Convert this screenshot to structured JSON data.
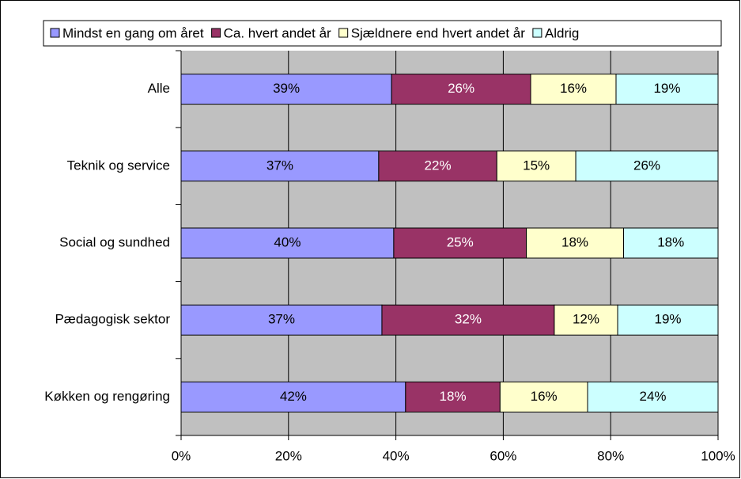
{
  "chart_data": {
    "type": "stacked_bar_horizontal",
    "categories": [
      "Alle",
      "Teknik og service",
      "Social og sundhed",
      "Pædagogisk sektor",
      "Køkken og rengøring"
    ],
    "series": [
      {
        "name": "Mindst en gang om året",
        "color": "#9999ff",
        "values": [
          39.2,
          36.8,
          39.6,
          37.4,
          41.8
        ],
        "value_labels": [
          "39%",
          "37%",
          "40%",
          "37%",
          "42%"
        ]
      },
      {
        "name": "Ca. hvert andet år",
        "color": "#993366",
        "values": [
          25.9,
          22.0,
          24.7,
          32.1,
          17.6
        ],
        "value_labels": [
          "26%",
          "22%",
          "25%",
          "32%",
          "18%"
        ]
      },
      {
        "name": "Sjældnere end hvert andet år",
        "color": "#ffffcc",
        "values": [
          15.9,
          14.7,
          18.1,
          11.8,
          16.3
        ],
        "value_labels": [
          "16%",
          "15%",
          "18%",
          "12%",
          "16%"
        ]
      },
      {
        "name": "Aldrig",
        "color": "#ccffff",
        "values": [
          19.0,
          26.5,
          17.6,
          18.7,
          24.3
        ],
        "value_labels": [
          "19%",
          "26%",
          "18%",
          "19%",
          "24%"
        ]
      }
    ],
    "xlim": [
      0,
      100
    ],
    "xticks": [
      {
        "value": 0,
        "label": "0%"
      },
      {
        "value": 20,
        "label": "20%"
      },
      {
        "value": 40,
        "label": "40%"
      },
      {
        "value": 60,
        "label": "60%"
      },
      {
        "value": 80,
        "label": "80%"
      },
      {
        "value": 100,
        "label": "100%"
      }
    ],
    "grid": true,
    "legend": "top",
    "plot_background": "#c0c0c0"
  }
}
